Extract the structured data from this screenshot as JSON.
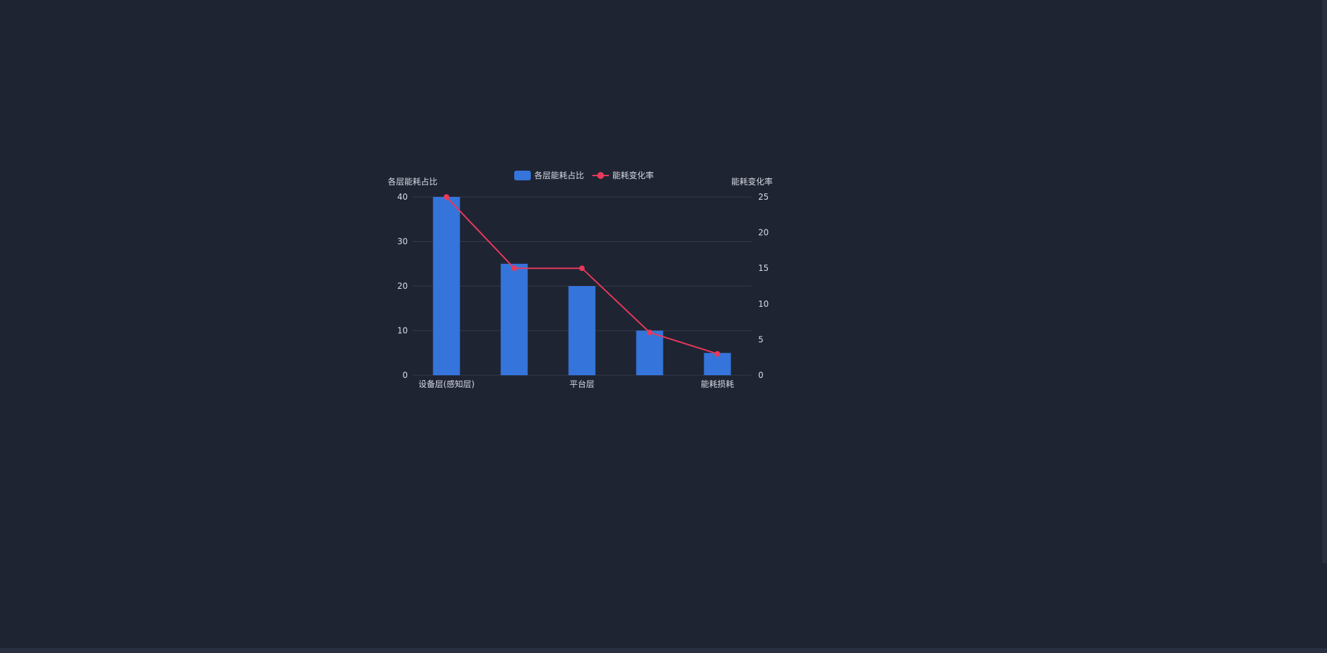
{
  "chart_data": {
    "type": "bar",
    "categories": [
      "设备层(感知层)",
      "",
      "平台层",
      "",
      "能耗损耗"
    ],
    "series": [
      {
        "name": "各层能耗占比",
        "type": "bar",
        "axis": "left",
        "color": "#3575db",
        "values": [
          40,
          25,
          20,
          10,
          5
        ]
      },
      {
        "name": "能耗变化率",
        "type": "line",
        "axis": "right",
        "color": "#e8395a",
        "values": [
          25,
          15,
          15,
          6,
          3
        ]
      }
    ],
    "ylabel": "各层能耗占比",
    "y2label": "能耗变化率",
    "ylim": [
      0,
      40
    ],
    "y2lim": [
      0,
      25
    ],
    "yticks": [
      "0",
      "10",
      "20",
      "30",
      "40"
    ],
    "y2ticks": [
      "0",
      "5",
      "10",
      "15",
      "20",
      "25"
    ],
    "grid": true,
    "legend_position": "top-center"
  },
  "colors": {
    "background": "#1f2433",
    "gridline": "#343a4a",
    "text": "#d9dde6"
  }
}
